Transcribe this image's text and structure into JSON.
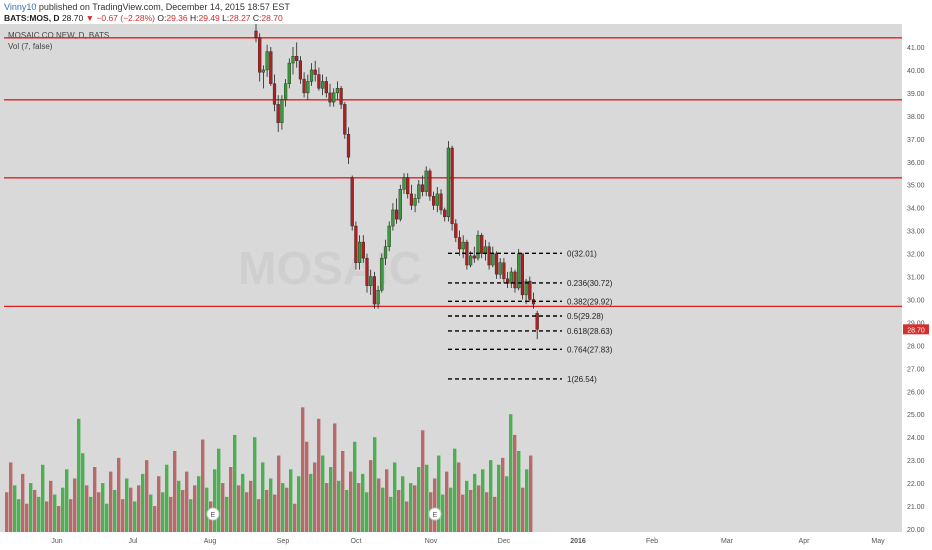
{
  "header": {
    "author": "Vinny10",
    "published": "published on TradingView.com, December 14, 2015 18:57 EST",
    "symbol": "BATS:MOS, D",
    "last": "28.70",
    "change": "−0.67 (−2.28%)",
    "o_label": "O:",
    "o_val": "29.36",
    "h_label": "H:",
    "h_val": "29.49",
    "l_label": "L:",
    "l_val": "28.27",
    "c_label": "C:",
    "c_val": "28.70"
  },
  "legend": {
    "title": "MOSAIC CO NEW, D, BATS",
    "vol": "Vol (7, false)",
    "watermark": "MOSAIC"
  },
  "colors": {
    "up": "#3a9a3a",
    "down": "#b02020",
    "vol_up": "#4caf50",
    "vol_down": "#b86a6a",
    "hline": "#e02020",
    "fib": "#000000",
    "bg": "#d9d9d9",
    "price_tag": "#d32f2f"
  },
  "chart_data": {
    "type": "candlestick",
    "ylim": [
      19.8,
      41.9
    ],
    "y_ticks": [
      "20.00",
      "21.00",
      "22.00",
      "23.00",
      "24.00",
      "25.00",
      "26.00",
      "27.00",
      "28.00",
      "29.00",
      "30.00",
      "31.00",
      "32.00",
      "33.00",
      "34.00",
      "35.00",
      "36.00",
      "37.00",
      "38.00",
      "39.00",
      "40.00",
      "41.00"
    ],
    "x_labels": [
      "Jun",
      "Jul",
      "Aug",
      "Sep",
      "Oct",
      "Nov",
      "Dec",
      "2016",
      "Feb",
      "Mar",
      "Apr",
      "May"
    ],
    "last_price_label": "28.70",
    "horizontal_lines": [
      41.4,
      38.7,
      35.3,
      29.7
    ],
    "fib_levels": [
      {
        "label": "0(32.01)",
        "value": 32.01
      },
      {
        "label": "0.236(30.72)",
        "value": 30.72
      },
      {
        "label": "0.382(29.92)",
        "value": 29.92
      },
      {
        "label": "0.5(29.28)",
        "value": 29.28
      },
      {
        "label": "0.618(28.63)",
        "value": 28.63
      },
      {
        "label": "0.764(27.83)",
        "value": 27.83
      },
      {
        "label": "1(26.54)",
        "value": 26.54
      }
    ],
    "earnings_markers": [
      "E",
      "E"
    ],
    "candles": [
      [
        41.7,
        42.2,
        41.2,
        41.4
      ],
      [
        41.4,
        41.6,
        39.5,
        39.9
      ],
      [
        39.9,
        40.2,
        39.2,
        40.0
      ],
      [
        40.0,
        41.1,
        39.7,
        40.8
      ],
      [
        40.8,
        41.0,
        39.3,
        39.4
      ],
      [
        39.4,
        39.8,
        38.2,
        38.5
      ],
      [
        38.5,
        38.9,
        37.3,
        37.7
      ],
      [
        37.7,
        38.9,
        37.4,
        38.7
      ],
      [
        38.7,
        39.6,
        38.4,
        39.4
      ],
      [
        39.4,
        40.5,
        39.2,
        40.3
      ],
      [
        40.3,
        41.0,
        39.8,
        40.6
      ],
      [
        40.6,
        41.2,
        40.1,
        40.4
      ],
      [
        40.4,
        40.6,
        39.4,
        39.6
      ],
      [
        39.6,
        39.9,
        38.8,
        39.0
      ],
      [
        39.0,
        39.8,
        38.7,
        39.5
      ],
      [
        39.5,
        40.3,
        39.3,
        40.0
      ],
      [
        40.0,
        40.4,
        39.5,
        39.8
      ],
      [
        39.8,
        40.1,
        39.1,
        39.2
      ],
      [
        39.2,
        39.8,
        38.9,
        39.5
      ],
      [
        39.5,
        39.7,
        38.8,
        39.0
      ],
      [
        39.0,
        39.4,
        38.4,
        38.6
      ],
      [
        38.6,
        39.2,
        38.4,
        39.0
      ],
      [
        39.0,
        39.5,
        38.7,
        39.2
      ],
      [
        39.2,
        39.3,
        38.3,
        38.5
      ],
      [
        38.5,
        38.6,
        37.0,
        37.2
      ],
      [
        37.2,
        37.5,
        35.9,
        36.2
      ],
      [
        35.3,
        35.4,
        33.0,
        33.2
      ],
      [
        33.2,
        33.4,
        31.3,
        31.6
      ],
      [
        31.6,
        32.8,
        31.3,
        32.5
      ],
      [
        32.5,
        32.8,
        31.6,
        31.8
      ],
      [
        31.8,
        32.0,
        30.3,
        30.6
      ],
      [
        30.6,
        31.3,
        30.2,
        31.0
      ],
      [
        31.0,
        31.2,
        29.6,
        29.8
      ],
      [
        29.8,
        30.6,
        29.6,
        30.4
      ],
      [
        30.4,
        32.0,
        30.3,
        31.8
      ],
      [
        31.8,
        32.6,
        31.5,
        32.3
      ],
      [
        32.3,
        33.4,
        32.1,
        33.2
      ],
      [
        33.2,
        34.2,
        33.0,
        33.9
      ],
      [
        33.9,
        34.4,
        33.3,
        33.5
      ],
      [
        33.5,
        35.0,
        33.4,
        34.8
      ],
      [
        34.8,
        35.5,
        34.6,
        35.3
      ],
      [
        35.3,
        35.5,
        34.4,
        34.6
      ],
      [
        34.6,
        35.0,
        33.9,
        34.1
      ],
      [
        34.1,
        34.6,
        33.8,
        34.4
      ],
      [
        34.4,
        35.2,
        34.2,
        35.0
      ],
      [
        35.0,
        35.4,
        34.5,
        34.7
      ],
      [
        34.7,
        35.8,
        34.5,
        35.6
      ],
      [
        35.6,
        35.7,
        34.3,
        34.5
      ],
      [
        34.5,
        34.7,
        33.9,
        34.1
      ],
      [
        34.1,
        34.9,
        33.8,
        34.6
      ],
      [
        34.6,
        34.8,
        33.7,
        33.9
      ],
      [
        33.9,
        34.0,
        33.4,
        33.6
      ],
      [
        33.6,
        36.9,
        33.4,
        36.6
      ],
      [
        36.6,
        36.7,
        33.0,
        33.3
      ],
      [
        33.3,
        33.5,
        32.5,
        32.7
      ],
      [
        32.7,
        33.0,
        31.9,
        32.2
      ],
      [
        32.2,
        32.8,
        31.8,
        32.5
      ],
      [
        32.5,
        32.6,
        31.3,
        31.5
      ],
      [
        31.5,
        32.1,
        31.4,
        31.9
      ],
      [
        31.9,
        32.3,
        31.6,
        31.8
      ],
      [
        31.8,
        33.0,
        31.7,
        32.8
      ],
      [
        32.8,
        32.9,
        31.8,
        32.0
      ],
      [
        32.0,
        32.6,
        31.7,
        32.3
      ],
      [
        32.3,
        32.5,
        31.3,
        31.5
      ],
      [
        31.5,
        32.3,
        31.4,
        32.0
      ],
      [
        32.0,
        32.1,
        30.9,
        31.1
      ],
      [
        31.1,
        31.8,
        30.9,
        31.6
      ],
      [
        31.6,
        31.8,
        30.7,
        30.9
      ],
      [
        30.9,
        31.2,
        30.5,
        30.7
      ],
      [
        30.7,
        31.4,
        30.5,
        31.2
      ],
      [
        31.2,
        31.3,
        30.3,
        30.5
      ],
      [
        30.5,
        32.2,
        30.4,
        32.0
      ],
      [
        32.0,
        32.0,
        30.0,
        30.2
      ],
      [
        30.2,
        30.9,
        29.8,
        30.8
      ],
      [
        30.8,
        31.0,
        29.9,
        30.0
      ],
      [
        30.0,
        30.3,
        29.6,
        29.8
      ],
      [
        29.4,
        29.5,
        28.27,
        28.7
      ]
    ],
    "volumes": [
      [
        21.6,
        0
      ],
      [
        22.9,
        0
      ],
      [
        21.9,
        1
      ],
      [
        21.3,
        1
      ],
      [
        22.4,
        0
      ],
      [
        21.1,
        0
      ],
      [
        22.0,
        1
      ],
      [
        21.7,
        0
      ],
      [
        21.4,
        1
      ],
      [
        22.8,
        1
      ],
      [
        21.2,
        0
      ],
      [
        22.1,
        0
      ],
      [
        21.5,
        1
      ],
      [
        21.0,
        0
      ],
      [
        21.8,
        1
      ],
      [
        22.6,
        1
      ],
      [
        21.3,
        0
      ],
      [
        22.2,
        0
      ],
      [
        24.8,
        1
      ],
      [
        23.3,
        1
      ],
      [
        21.9,
        0
      ],
      [
        21.4,
        1
      ],
      [
        22.7,
        0
      ],
      [
        21.6,
        0
      ],
      [
        22.0,
        1
      ],
      [
        21.1,
        1
      ],
      [
        22.5,
        0
      ],
      [
        21.7,
        1
      ],
      [
        23.1,
        0
      ],
      [
        21.3,
        0
      ],
      [
        22.2,
        1
      ],
      [
        21.8,
        0
      ],
      [
        21.2,
        1
      ],
      [
        21.9,
        0
      ],
      [
        22.4,
        1
      ],
      [
        23.0,
        0
      ],
      [
        21.5,
        1
      ],
      [
        21.0,
        0
      ],
      [
        22.3,
        0
      ],
      [
        21.6,
        1
      ],
      [
        22.8,
        1
      ],
      [
        21.4,
        0
      ],
      [
        23.4,
        0
      ],
      [
        22.1,
        1
      ],
      [
        21.7,
        0
      ],
      [
        22.5,
        0
      ],
      [
        21.3,
        1
      ],
      [
        21.9,
        0
      ],
      [
        22.3,
        1
      ],
      [
        23.9,
        0
      ],
      [
        21.8,
        1
      ],
      [
        21.2,
        0
      ],
      [
        22.6,
        1
      ],
      [
        23.5,
        1
      ],
      [
        22.0,
        0
      ],
      [
        21.4,
        1
      ],
      [
        22.7,
        0
      ],
      [
        24.1,
        1
      ],
      [
        21.9,
        0
      ],
      [
        22.4,
        1
      ],
      [
        21.6,
        0
      ],
      [
        22.1,
        0
      ],
      [
        24.0,
        1
      ],
      [
        21.3,
        0
      ],
      [
        22.9,
        1
      ],
      [
        21.7,
        0
      ],
      [
        22.2,
        1
      ],
      [
        21.5,
        0
      ],
      [
        23.2,
        0
      ],
      [
        22.0,
        1
      ],
      [
        21.8,
        0
      ],
      [
        22.6,
        1
      ],
      [
        21.1,
        0
      ],
      [
        22.3,
        1
      ],
      [
        25.3,
        0
      ],
      [
        23.8,
        0
      ],
      [
        22.4,
        1
      ],
      [
        22.9,
        0
      ],
      [
        24.8,
        0
      ],
      [
        23.2,
        1
      ],
      [
        22.0,
        0
      ],
      [
        22.7,
        1
      ],
      [
        24.6,
        0
      ],
      [
        22.1,
        1
      ],
      [
        23.4,
        0
      ],
      [
        21.7,
        1
      ],
      [
        22.5,
        0
      ],
      [
        23.8,
        1
      ],
      [
        22.0,
        0
      ],
      [
        22.4,
        1
      ],
      [
        21.6,
        1
      ],
      [
        23.0,
        0
      ],
      [
        24.0,
        1
      ],
      [
        22.2,
        0
      ],
      [
        21.8,
        1
      ],
      [
        22.6,
        0
      ],
      [
        21.4,
        1
      ],
      [
        22.9,
        1
      ],
      [
        21.7,
        0
      ],
      [
        22.3,
        1
      ],
      [
        21.2,
        0
      ],
      [
        22.0,
        1
      ],
      [
        21.9,
        0
      ],
      [
        22.7,
        1
      ],
      [
        24.3,
        0
      ],
      [
        22.8,
        1
      ],
      [
        21.6,
        0
      ],
      [
        22.2,
        0
      ],
      [
        23.2,
        1
      ],
      [
        21.5,
        1
      ],
      [
        22.5,
        0
      ],
      [
        21.8,
        1
      ],
      [
        23.5,
        1
      ],
      [
        22.9,
        0
      ],
      [
        21.5,
        0
      ],
      [
        22.1,
        1
      ],
      [
        21.7,
        0
      ],
      [
        22.4,
        1
      ],
      [
        21.9,
        0
      ],
      [
        22.6,
        1
      ],
      [
        21.6,
        0
      ],
      [
        23.0,
        1
      ],
      [
        21.4,
        0
      ],
      [
        22.8,
        1
      ],
      [
        23.1,
        0
      ],
      [
        22.3,
        1
      ],
      [
        25.0,
        1
      ],
      [
        24.1,
        0
      ],
      [
        23.4,
        1
      ],
      [
        21.8,
        0
      ],
      [
        22.6,
        1
      ],
      [
        23.2,
        0
      ]
    ]
  }
}
